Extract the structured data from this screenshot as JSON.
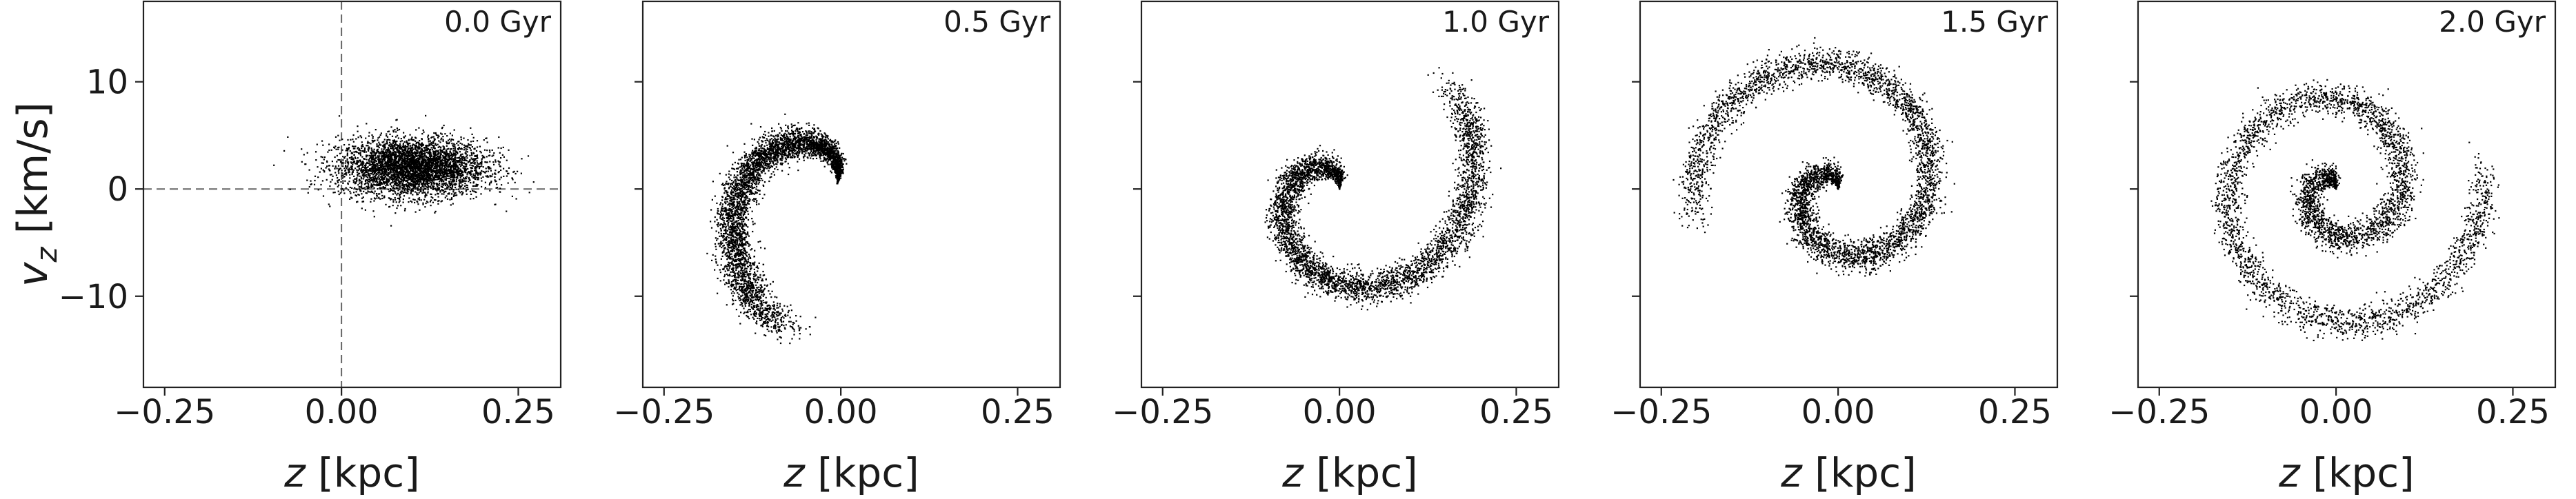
{
  "figure": {
    "ylabel_var": "v",
    "ylabel_sub": "z",
    "ylabel_unit": " [km/s]",
    "xlabel_var": "z",
    "xlabel_unit": " [kpc]"
  },
  "chart_data": [
    {
      "type": "scatter",
      "annotation": "0.0 Gyr",
      "xlim": [
        -0.28,
        0.31
      ],
      "ylim": [
        -18.5,
        17.5
      ],
      "xticks": [
        -0.25,
        0.0,
        0.25
      ],
      "xtick_labels": [
        "−0.25",
        "0.00",
        "0.25"
      ],
      "yticks": [
        -10,
        0,
        10
      ],
      "ytick_labels": [
        "−10",
        "0",
        "10"
      ],
      "show_ytick_labels": true,
      "reference_lines": {
        "x": 0.0,
        "y": 0.0
      },
      "distribution": {
        "shape": "ellipse",
        "center": [
          0.1,
          2.0
        ],
        "sigma": [
          0.052,
          1.35
        ],
        "count": 4200
      }
    },
    {
      "type": "scatter",
      "annotation": "0.5 Gyr",
      "xlim": [
        -0.28,
        0.31
      ],
      "ylim": [
        -18.5,
        17.5
      ],
      "xticks": [
        -0.25,
        0.0,
        0.25
      ],
      "xtick_labels": [
        "−0.25",
        "0.00",
        "0.25"
      ],
      "yticks": [
        -10,
        0,
        10
      ],
      "ytick_labels": [
        "−10",
        "0",
        "10"
      ],
      "show_ytick_labels": false,
      "distribution": {
        "shape": "spiral",
        "center": [
          -0.005,
          0.5
        ],
        "scale_x": 0.21,
        "scale_v": 14.5,
        "winding": 1.4,
        "count": 4200
      }
    },
    {
      "type": "scatter",
      "annotation": "1.0 Gyr",
      "xlim": [
        -0.28,
        0.31
      ],
      "ylim": [
        -18.5,
        17.5
      ],
      "xticks": [
        -0.25,
        0.0,
        0.25
      ],
      "xtick_labels": [
        "−0.25",
        "0.00",
        "0.25"
      ],
      "yticks": [
        -10,
        0,
        10
      ],
      "ytick_labels": [
        "−10",
        "0",
        "10"
      ],
      "show_ytick_labels": false,
      "distribution": {
        "shape": "spiral",
        "center": [
          0.0,
          0.0
        ],
        "scale_x": 0.21,
        "scale_v": 14.5,
        "winding": 2.6,
        "count": 4200
      }
    },
    {
      "type": "scatter",
      "annotation": "1.5 Gyr",
      "xlim": [
        -0.28,
        0.31
      ],
      "ylim": [
        -18.5,
        17.5
      ],
      "xticks": [
        -0.25,
        0.0,
        0.25
      ],
      "xtick_labels": [
        "−0.25",
        "0.00",
        "0.25"
      ],
      "yticks": [
        -10,
        0,
        10
      ],
      "ytick_labels": [
        "−10",
        "0",
        "10"
      ],
      "show_ytick_labels": false,
      "distribution": {
        "shape": "spiral",
        "center": [
          0.0,
          0.0
        ],
        "scale_x": 0.21,
        "scale_v": 14.5,
        "winding": 3.8,
        "count": 4200
      }
    },
    {
      "type": "scatter",
      "annotation": "2.0 Gyr",
      "xlim": [
        -0.28,
        0.31
      ],
      "ylim": [
        -18.5,
        17.5
      ],
      "xticks": [
        -0.25,
        0.0,
        0.25
      ],
      "xtick_labels": [
        "−0.25",
        "0.00",
        "0.25"
      ],
      "yticks": [
        -10,
        0,
        10
      ],
      "ytick_labels": [
        "−10",
        "0",
        "10"
      ],
      "show_ytick_labels": false,
      "distribution": {
        "shape": "spiral",
        "center": [
          0.0,
          0.0
        ],
        "scale_x": 0.21,
        "scale_v": 14.5,
        "winding": 5.2,
        "count": 4200
      }
    }
  ]
}
